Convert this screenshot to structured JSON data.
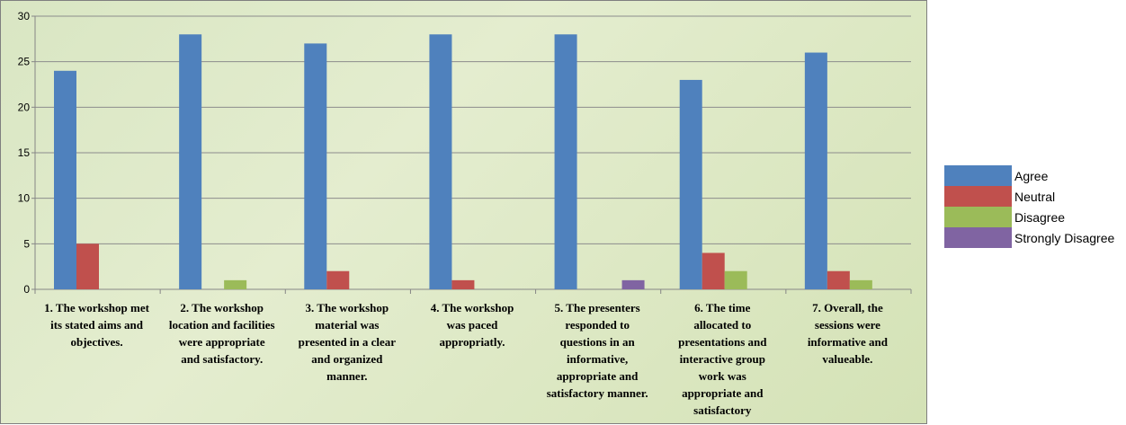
{
  "chart_data": {
    "type": "bar",
    "categories": [
      "1. The workshop met its stated aims and objectives.",
      "2. The workshop location and facilities were appropriate and satisfactory.",
      "3. The workshop material was presented in a clear and organized manner.",
      "4. The workshop was paced appropriatly.",
      "5. The presenters responded to questions in an informative, appropriate and satisfactory manner.",
      "6. The time allocated to presentations and interactive group work was appropriate and satisfactory",
      "7. Overall, the sessions were informative and valueable."
    ],
    "category_lines": [
      [
        "1. The workshop met",
        "its stated aims and",
        "objectives."
      ],
      [
        "2. The workshop",
        "location and facilities",
        "were appropriate",
        "and satisfactory."
      ],
      [
        "3. The workshop",
        "material was",
        "presented in a clear",
        "and organized",
        "manner."
      ],
      [
        "4. The workshop",
        "was paced",
        "appropriatly."
      ],
      [
        "5. The presenters",
        "responded to",
        "questions in an",
        "informative,",
        "appropriate and",
        "satisfactory manner."
      ],
      [
        "6. The time",
        "allocated to",
        "presentations and",
        "interactive group",
        "work was",
        "appropriate and",
        "satisfactory"
      ],
      [
        "7. Overall, the",
        "sessions were",
        "informative and",
        "valueable."
      ]
    ],
    "series": [
      {
        "name": "Agree",
        "color": "#4f81bd",
        "values": [
          24,
          28,
          27,
          28,
          28,
          23,
          26
        ]
      },
      {
        "name": "Neutral",
        "color": "#c0504d",
        "values": [
          5,
          0,
          2,
          1,
          0,
          4,
          2
        ]
      },
      {
        "name": "Disagree",
        "color": "#9bbb59",
        "values": [
          0,
          1,
          0,
          0,
          0,
          2,
          1
        ]
      },
      {
        "name": "Strongly Disagree",
        "color": "#8064a2",
        "values": [
          0,
          0,
          0,
          0,
          1,
          0,
          0
        ]
      }
    ],
    "yticks": [
      "0",
      "5",
      "10",
      "15",
      "20",
      "25",
      "30"
    ],
    "ylim": [
      0,
      30
    ],
    "grid": true,
    "legend_position": "right",
    "title": "",
    "xlabel": "",
    "ylabel": ""
  }
}
